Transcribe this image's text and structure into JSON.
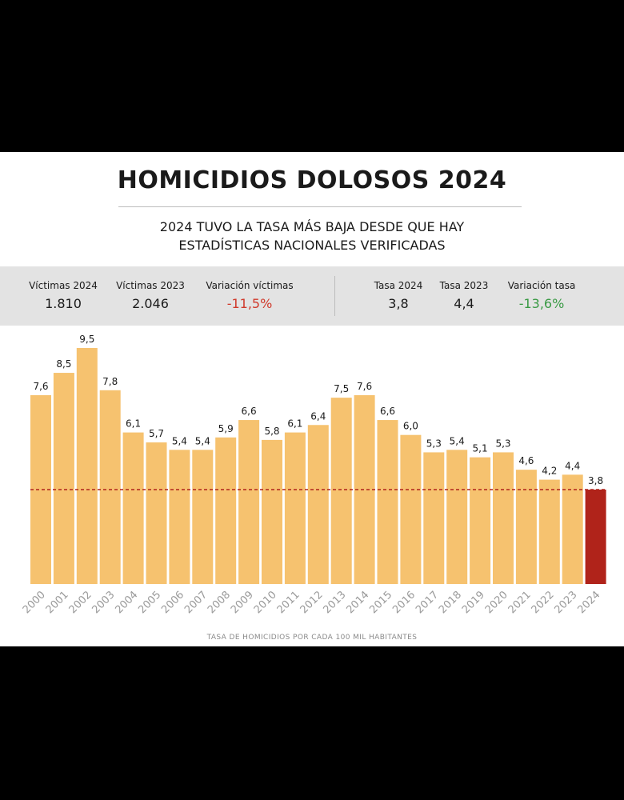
{
  "title": "HOMICIDIOS DOLOSOS 2024",
  "subtitle_line1": "2024 TUVO LA TASA MÁS BAJA DESDE QUE HAY",
  "subtitle_line2": "ESTADÍSTICAS NACIONALES VERIFICADAS",
  "stats": [
    {
      "label": "Víctimas 2024",
      "value": "1.810",
      "tone": "normal"
    },
    {
      "label": "Víctimas 2023",
      "value": "2.046",
      "tone": "normal"
    },
    {
      "label": "Variación víctimas",
      "value": "-11,5%",
      "tone": "negative"
    },
    {
      "label": "Tasa 2024",
      "value": "3,8",
      "tone": "normal"
    },
    {
      "label": "Tasa 2023",
      "value": "4,4",
      "tone": "normal"
    },
    {
      "label": "Variación tasa",
      "value": "-13,6%",
      "tone": "positive"
    }
  ],
  "colors": {
    "bar": "#f6c26f",
    "highlight_bar": "#b0231a",
    "reference_line": "#b0231a",
    "negative": "#d0392b",
    "positive": "#3a9a45"
  },
  "chart_data": {
    "type": "bar",
    "categories": [
      "2000",
      "2001",
      "2002",
      "2003",
      "2004",
      "2005",
      "2006",
      "2007",
      "2008",
      "2009",
      "2010",
      "2011",
      "2012",
      "2013",
      "2014",
      "2015",
      "2016",
      "2017",
      "2018",
      "2019",
      "2020",
      "2021",
      "2022",
      "2023",
      "2024"
    ],
    "values": [
      7.6,
      8.5,
      9.5,
      7.8,
      6.1,
      5.7,
      5.4,
      5.4,
      5.9,
      6.6,
      5.8,
      6.1,
      6.4,
      7.5,
      7.6,
      6.6,
      6.0,
      5.3,
      5.4,
      5.1,
      5.3,
      4.6,
      4.2,
      4.4,
      3.8
    ],
    "data_labels": [
      "7,6",
      "8,5",
      "9,5",
      "7,8",
      "6,1",
      "5,7",
      "5,4",
      "5,4",
      "5,9",
      "6,6",
      "5,8",
      "6,1",
      "6,4",
      "7,5",
      "7,6",
      "6,6",
      "6,0",
      "5,3",
      "5,4",
      "5,1",
      "5,3",
      "4,6",
      "4,2",
      "4,4",
      "3,8"
    ],
    "highlight_category": "2024",
    "reference_line_value": 3.8,
    "ylim": [
      0,
      9.5
    ],
    "xlabel": "TASA DE HOMICIDIOS POR CADA 100 MIL HABITANTES",
    "ylabel": "",
    "grid": false,
    "legend": "none"
  }
}
